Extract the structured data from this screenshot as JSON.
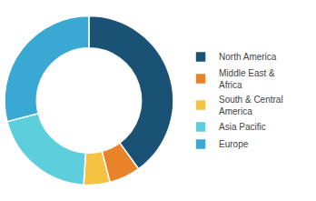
{
  "chart_data": {
    "type": "pie",
    "categories": [
      "North America",
      "Middle East &\nAfrica",
      "South & Central\nAmerica",
      "Asia Pacific",
      "Europe"
    ],
    "values": [
      40,
      6,
      5,
      20,
      29
    ],
    "colors": [
      "#1a5276",
      "#e8832a",
      "#f5c242",
      "#5dcedc",
      "#39a9d4"
    ],
    "data_labels": false,
    "legend": "right"
  }
}
